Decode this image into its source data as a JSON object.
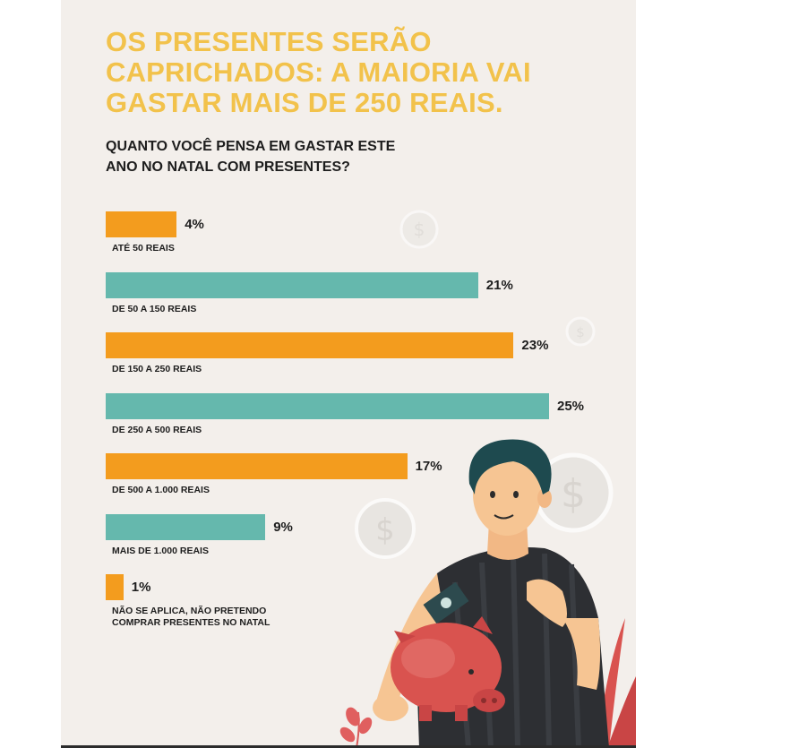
{
  "title": "OS PRESENTES SERÃO\nCAPRICHADOS: A MAIORIA VAI\nGASTAR MAIS DE 250 REAIS.",
  "subtitle": "QUANTO VOCÊ PENSA EM GASTAR ESTE\nANO NO NATAL COM PRESENTES?",
  "colors": {
    "orange": "#f39c1e",
    "teal": "#65b8ad",
    "title": "#f2c24b",
    "background": "#f3efeb"
  },
  "chart_data": {
    "type": "bar",
    "orientation": "horizontal",
    "title": "QUANTO VOCÊ PENSA EM GASTAR ESTE ANO NO NATAL COM PRESENTES?",
    "categories": [
      "ATÉ 50 REAIS",
      "DE 50 A 150 REAIS",
      "DE 150 A 250 REAIS",
      "DE 250 A 500 REAIS",
      "DE 500 A 1.000 REAIS",
      "MAIS DE 1.000 REAIS",
      "NÃO SE APLICA, NÃO PRETENDO\nCOMPRAR PRESENTES NO NATAL"
    ],
    "values": [
      4,
      21,
      23,
      25,
      17,
      9,
      1
    ],
    "labels": [
      "4%",
      "21%",
      "23%",
      "25%",
      "17%",
      "9%",
      "1%"
    ],
    "bar_colors": [
      "#f39c1e",
      "#65b8ad",
      "#f39c1e",
      "#65b8ad",
      "#f39c1e",
      "#65b8ad",
      "#f39c1e"
    ],
    "unit": "%",
    "grid": false,
    "legend": "none"
  }
}
